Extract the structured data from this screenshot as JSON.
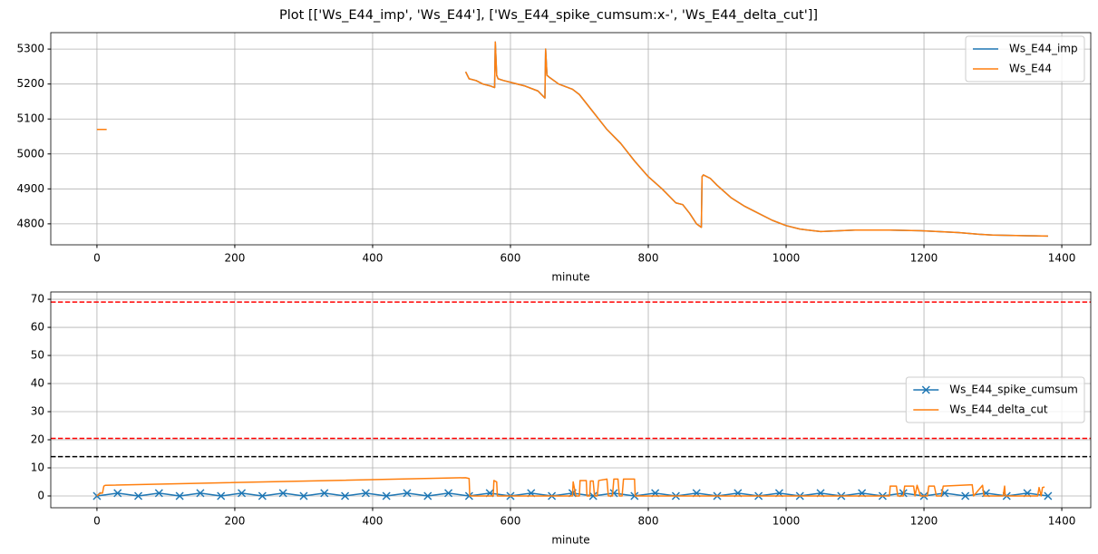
{
  "title": "Plot [['Ws_E44_imp', 'Ws_E44'], ['Ws_E44_spike_cumsum:x-', 'Ws_E44_delta_cut']]",
  "chart_data": [
    {
      "type": "line",
      "xlabel": "minute",
      "xlim": [
        -67,
        1442
      ],
      "ylim": [
        4740,
        5347
      ],
      "xticks": [
        0,
        200,
        400,
        600,
        800,
        1000,
        1200,
        1400
      ],
      "yticks": [
        4800,
        4900,
        5000,
        5100,
        5200,
        5300
      ],
      "grid": true,
      "legend": "upper right",
      "series": [
        {
          "name": "Ws_E44_imp",
          "color": "#1f77b4",
          "x": [
            0,
            14,
            300,
            535,
            540,
            550,
            560,
            570,
            577,
            578,
            580,
            582,
            590,
            600,
            620,
            640,
            650,
            651,
            653,
            656,
            670,
            690,
            700,
            720,
            740,
            760,
            780,
            800,
            820,
            840,
            850,
            860,
            870,
            877,
            878,
            880,
            890,
            900,
            920,
            940,
            960,
            980,
            1000,
            1020,
            1050,
            1100,
            1150,
            1200,
            1250,
            1280,
            1300,
            1350,
            1380
          ],
          "values": [
            5070,
            5070,
            null,
            5235,
            5215,
            5210,
            5200,
            5195,
            5190,
            5320,
            5225,
            5215,
            5210,
            5205,
            5195,
            5180,
            5160,
            5300,
            5225,
            5220,
            5200,
            5185,
            5170,
            5120,
            5070,
            5030,
            4980,
            4935,
            4900,
            4860,
            4855,
            4830,
            4800,
            4790,
            4935,
            4940,
            4930,
            4910,
            4875,
            4850,
            4830,
            4810,
            4795,
            4785,
            4778,
            4782,
            4782,
            4780,
            4775,
            4770,
            4768,
            4766,
            4765
          ]
        },
        {
          "name": "Ws_E44",
          "color": "#ff7f0e",
          "x": [
            0,
            14,
            300,
            535,
            540,
            550,
            560,
            570,
            577,
            578,
            580,
            582,
            590,
            600,
            620,
            640,
            650,
            651,
            653,
            656,
            670,
            690,
            700,
            720,
            740,
            760,
            780,
            800,
            820,
            840,
            850,
            860,
            870,
            877,
            878,
            880,
            890,
            900,
            920,
            940,
            960,
            980,
            1000,
            1020,
            1050,
            1100,
            1150,
            1200,
            1250,
            1280,
            1300,
            1350,
            1380
          ],
          "values": [
            5070,
            5070,
            null,
            5235,
            5215,
            5210,
            5200,
            5195,
            5190,
            5320,
            5225,
            5215,
            5210,
            5205,
            5195,
            5180,
            5160,
            5300,
            5225,
            5220,
            5200,
            5185,
            5170,
            5120,
            5070,
            5030,
            4980,
            4935,
            4900,
            4860,
            4855,
            4830,
            4800,
            4790,
            4935,
            4940,
            4930,
            4910,
            4875,
            4850,
            4830,
            4810,
            4795,
            4785,
            4778,
            4782,
            4782,
            4780,
            4775,
            4770,
            4768,
            4766,
            4765
          ]
        }
      ]
    },
    {
      "type": "line",
      "xlabel": "minute",
      "xlim": [
        -67,
        1442
      ],
      "ylim": [
        -4.2,
        72.6
      ],
      "xticks": [
        0,
        200,
        400,
        600,
        800,
        1000,
        1200,
        1400
      ],
      "yticks": [
        0,
        10,
        20,
        30,
        40,
        50,
        60,
        70
      ],
      "grid": true,
      "legend": "center right",
      "hlines": [
        {
          "value": 69,
          "color": "#ff0000"
        },
        {
          "value": 20.5,
          "color": "#ff0000"
        },
        {
          "value": 14,
          "color": "#000000"
        }
      ],
      "series": [
        {
          "name": "Ws_E44_spike_cumsum",
          "color": "#1f77b4",
          "marker": "x",
          "x": [
            0,
            30,
            60,
            90,
            120,
            150,
            180,
            210,
            240,
            270,
            300,
            330,
            360,
            390,
            420,
            450,
            480,
            510,
            540,
            570,
            600,
            630,
            660,
            690,
            720,
            750,
            780,
            810,
            840,
            870,
            900,
            930,
            960,
            990,
            1020,
            1050,
            1080,
            1110,
            1140,
            1170,
            1200,
            1230,
            1260,
            1290,
            1320,
            1350,
            1380
          ],
          "values": [
            0,
            1,
            0,
            1,
            0,
            1,
            0,
            1,
            0,
            1,
            0,
            1,
            0,
            1,
            0,
            1,
            0,
            1,
            0,
            1,
            0,
            1,
            0,
            1,
            0,
            1,
            0,
            1,
            0,
            1,
            0,
            1,
            0,
            1,
            0,
            1,
            0,
            1,
            0,
            1,
            0,
            1,
            0,
            1,
            0,
            1,
            0
          ]
        },
        {
          "name": "Ws_E44_delta_cut",
          "color": "#ff7f0e",
          "x": [
            0,
            5,
            8,
            10,
            12,
            535,
            540,
            541,
            575,
            576,
            580,
            581,
            690,
            691,
            695,
            700,
            701,
            710,
            711,
            715,
            716,
            720,
            722,
            726,
            728,
            740,
            742,
            748,
            750,
            756,
            758,
            762,
            764,
            780,
            781,
            782,
            1150,
            1151,
            1160,
            1162,
            1170,
            1172,
            1185,
            1187,
            1190,
            1195,
            1205,
            1207,
            1215,
            1218,
            1225,
            1228,
            1270,
            1272,
            1285,
            1287,
            1315,
            1317,
            1318,
            1320,
            1365,
            1367,
            1370,
            1372,
            1375
          ],
          "values": [
            0,
            1,
            1,
            3.5,
            3.8,
            6.5,
            6.2,
            0,
            0,
            5.5,
            5,
            0,
            0,
            5,
            0,
            0,
            5.5,
            5.5,
            0,
            0,
            5.3,
            5.3,
            0,
            0,
            5.5,
            6,
            0,
            0,
            6,
            6,
            0,
            0,
            6,
            6,
            0,
            0,
            0,
            3.5,
            3.5,
            0,
            0,
            3.5,
            3.5,
            0,
            3.8,
            0,
            0,
            3.5,
            3.5,
            0,
            0,
            3.5,
            4,
            0,
            3.8,
            0,
            0,
            3.5,
            0,
            0,
            0,
            3,
            0,
            3,
            3.2
          ]
        }
      ]
    }
  ]
}
